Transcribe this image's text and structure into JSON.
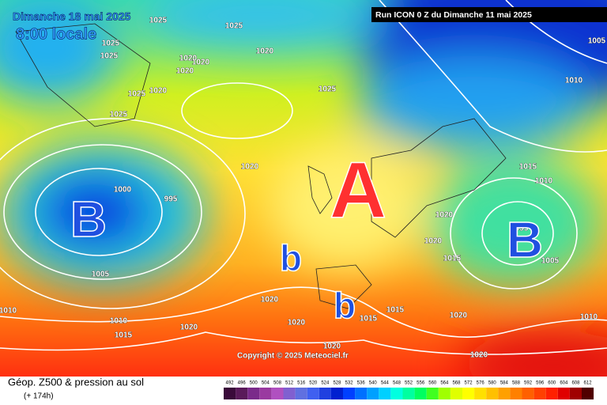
{
  "header": {
    "date": "Dimanche 18 mai 2025",
    "time": "8:00 locale",
    "run": "Run ICON 0 Z du Dimanche 11 mai 2025"
  },
  "copyright": "Copyright © 2025 Meteociel.fr",
  "footer": {
    "title": "Géop. Z500 & pression au sol",
    "lead": "(+ 174h)"
  },
  "centers": [
    "B",
    "A",
    "B",
    "b",
    "b"
  ],
  "isobar_labels": [
    1025,
    1025,
    1025,
    1025,
    1020,
    1020,
    1020,
    1020,
    1025,
    1020,
    1025,
    1025,
    1020,
    1005,
    1010,
    1015,
    1010,
    1000,
    995,
    1020,
    1020,
    1015,
    995,
    1005,
    1005,
    1020,
    1010,
    1010,
    1015,
    1020,
    1020,
    1015,
    1015,
    1020,
    1020,
    1010,
    1020
  ],
  "scale": {
    "values": [
      492,
      496,
      500,
      504,
      508,
      512,
      516,
      520,
      524,
      528,
      532,
      536,
      540,
      544,
      548,
      552,
      556,
      560,
      564,
      568,
      572,
      576,
      580,
      584,
      588,
      592,
      596,
      600,
      604,
      608,
      612
    ],
    "colors": [
      "#3a0a3a",
      "#5a1a5a",
      "#7a2a8a",
      "#9a3aa0",
      "#b050c0",
      "#8060d0",
      "#6070e0",
      "#4060f0",
      "#2040e0",
      "#0020d0",
      "#0040ff",
      "#0070ff",
      "#00a0ff",
      "#00d0ff",
      "#00ffe0",
      "#00ffa0",
      "#00ff60",
      "#40ff20",
      "#a0ff00",
      "#e0ff00",
      "#ffff00",
      "#ffe000",
      "#ffc000",
      "#ffa000",
      "#ff8000",
      "#ff6000",
      "#ff4000",
      "#ff2000",
      "#e00000",
      "#a00000",
      "#500000"
    ]
  }
}
